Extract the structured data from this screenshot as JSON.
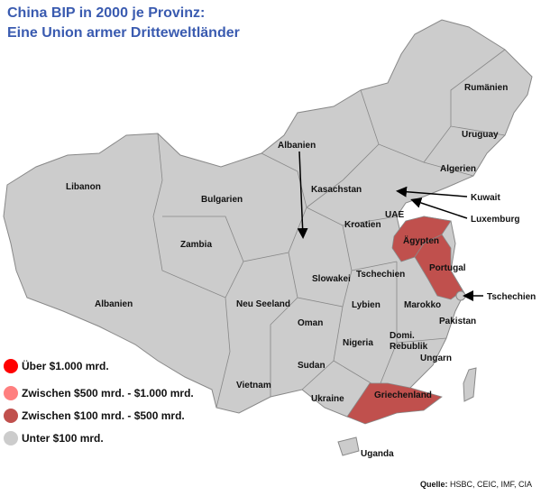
{
  "title": {
    "line1": "China BIP  in 2000 je Provinz:",
    "line2": "Eine Union armer Dritteweltländer"
  },
  "colors": {
    "title": "#3a5bb0",
    "over_1000": "#ff0000",
    "500_1000": "#ff7f7f",
    "100_500": "#c0504d",
    "under_100": "#cccccc",
    "border": "#888888"
  },
  "map_labels": [
    "Rumänien",
    "Uruguay",
    "Algerien",
    "Albanien",
    "Libanon",
    "Kasachstan",
    "Bulgarien",
    "Kuwait",
    "UAE",
    "Luxemburg",
    "Kroatien",
    "Ägypten",
    "Zambia",
    "Slowakei",
    "Tschechien",
    "Portugal",
    "Albanien",
    "Neu Seeland",
    "Lybien",
    "Marokko",
    "Tschechien",
    "Oman",
    "Pakistan",
    "Domi. Rebublik",
    "Nigeria",
    "Ungarn",
    "Sudan",
    "Vietnam",
    "Ukraine",
    "Griechenland",
    "Uganda"
  ],
  "legend": [
    {
      "label": "Über $1.000 mrd.",
      "color": "#ff0000"
    },
    {
      "label": "Zwischen $500 mrd. - $1.000 mrd.",
      "color": "#ff7f7f"
    },
    {
      "label": "Zwischen $100 mrd. - $500 mrd.",
      "color": "#c0504d"
    },
    {
      "label": "Unter $100 mrd.",
      "color": "#cccccc"
    }
  ],
  "source": {
    "prefix": "Quelle:",
    "text": " HSBC, CEIC, IMF, CIA"
  }
}
